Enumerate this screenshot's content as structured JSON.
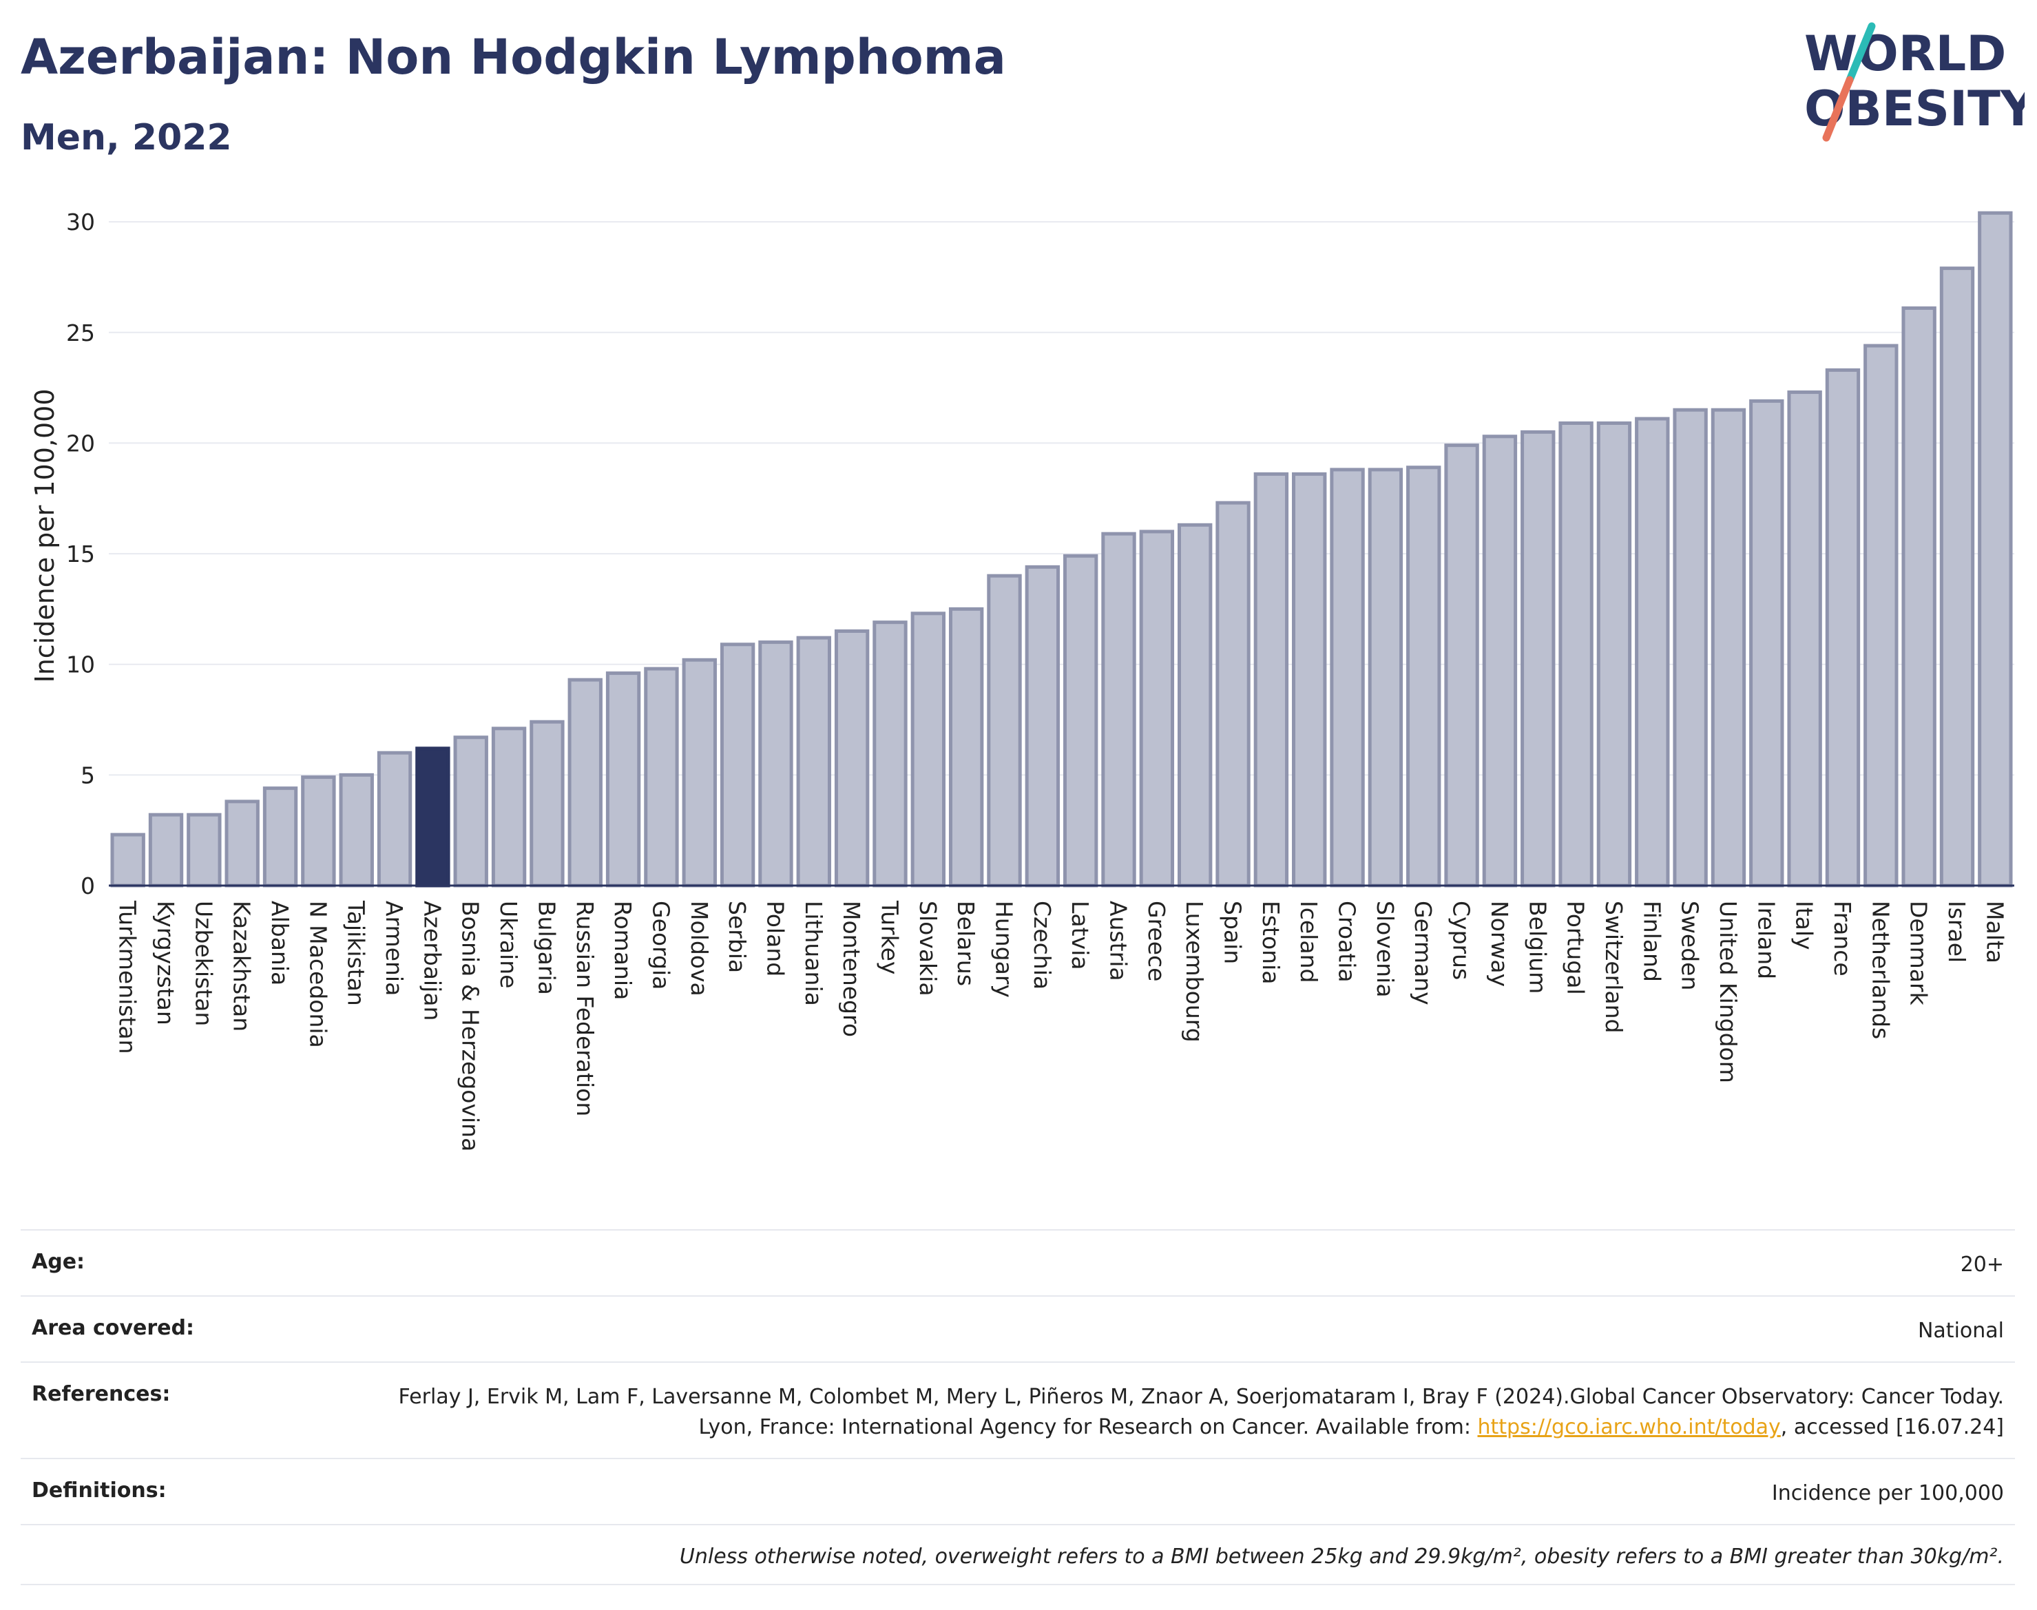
{
  "header": {
    "title": "Azerbaijan: Non Hodgkin Lymphoma",
    "subtitle": "Men, 2022"
  },
  "logo": {
    "line1": "WORLD",
    "line2": "OBESITY",
    "accent_colors": [
      "#2bbbb6",
      "#e8735a"
    ]
  },
  "colors": {
    "bar": "#bcc0d0",
    "bar_edge": "#8f94ad",
    "highlight": "#2b3561",
    "grid": "#e8eaf0"
  },
  "chart_data": {
    "type": "bar",
    "title": "Azerbaijan: Non Hodgkin Lymphoma",
    "subtitle": "Men, 2022",
    "ylabel": "Incidence per 100,000",
    "xlabel": "",
    "ylim": [
      0,
      31
    ],
    "yticks": [
      0,
      5,
      10,
      15,
      20,
      25,
      30
    ],
    "grid": true,
    "highlight": "Azerbaijan",
    "categories": [
      "Turkmenistan",
      "Kyrgyzstan",
      "Uzbekistan",
      "Kazakhstan",
      "Albania",
      "N Macedonia",
      "Tajikistan",
      "Armenia",
      "Azerbaijan",
      "Bosnia & Herzegovina",
      "Ukraine",
      "Bulgaria",
      "Russian Federation",
      "Romania",
      "Georgia",
      "Moldova",
      "Serbia",
      "Poland",
      "Lithuania",
      "Montenegro",
      "Turkey",
      "Slovakia",
      "Belarus",
      "Hungary",
      "Czechia",
      "Latvia",
      "Austria",
      "Greece",
      "Luxembourg",
      "Spain",
      "Estonia",
      "Iceland",
      "Croatia",
      "Slovenia",
      "Germany",
      "Cyprus",
      "Norway",
      "Belgium",
      "Portugal",
      "Switzerland",
      "Finland",
      "Sweden",
      "United Kingdom",
      "Ireland",
      "Italy",
      "France",
      "Netherlands",
      "Denmark",
      "Israel",
      "Malta"
    ],
    "values": [
      2.3,
      3.2,
      3.2,
      3.8,
      4.4,
      4.9,
      5.0,
      6.0,
      6.2,
      6.7,
      7.1,
      7.4,
      9.3,
      9.6,
      9.8,
      10.2,
      10.9,
      11.0,
      11.2,
      11.5,
      11.9,
      12.3,
      12.5,
      14.0,
      14.4,
      14.9,
      15.9,
      16.0,
      16.3,
      17.3,
      18.6,
      18.6,
      18.8,
      18.8,
      18.9,
      19.9,
      20.3,
      20.5,
      20.9,
      20.9,
      21.1,
      21.5,
      21.5,
      21.9,
      22.3,
      23.3,
      24.4,
      26.1,
      27.9,
      30.4
    ]
  },
  "info": {
    "age_label": "Age:",
    "age_value": "20+",
    "area_label": "Area covered:",
    "area_value": "National",
    "references_label": "References:",
    "references_text": "Ferlay J, Ervik M, Lam F, Laversanne M, Colombet M, Mery L, Piñeros M, Znaor A, Soerjomataram I, Bray F (2024).Global Cancer Observatory: Cancer Today. Lyon, France: International Agency for Research on Cancer. Available from: ",
    "references_link": "https://gco.iarc.who.int/today",
    "references_tail": ", accessed [16.07.24]",
    "definitions_label": "Definitions:",
    "definitions_value": "Incidence per 100,000",
    "note": "Unless otherwise noted, overweight refers to a BMI between 25kg and 29.9kg/m², obesity refers to a BMI greater than 30kg/m²."
  }
}
